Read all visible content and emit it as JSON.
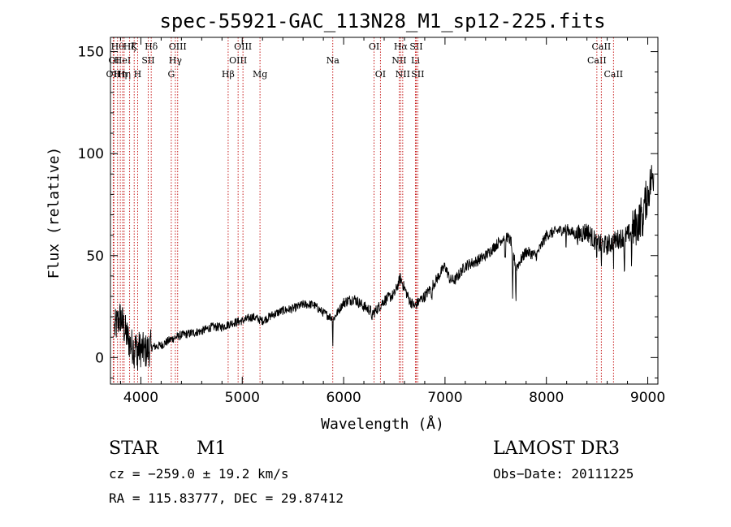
{
  "chart_data": {
    "type": "line",
    "title": "spec-55921-GAC_113N28_M1_sp12-225.fits",
    "xlabel": "Wavelength (Å)",
    "ylabel": "Flux (relative)",
    "xlim": [
      3700,
      9100
    ],
    "ylim": [
      -13,
      157
    ],
    "xticks": [
      4000,
      5000,
      6000,
      7000,
      8000,
      9000
    ],
    "yticks": [
      0,
      50,
      100,
      150
    ],
    "grid": false,
    "series": [
      {
        "name": "flux",
        "x": [
          3700,
          3750,
          3800,
          3850,
          3900,
          3950,
          4000,
          4050,
          4100,
          4200,
          4300,
          4400,
          4500,
          4600,
          4700,
          4800,
          4900,
          5000,
          5100,
          5200,
          5300,
          5400,
          5500,
          5600,
          5700,
          5800,
          5900,
          6000,
          6100,
          6200,
          6300,
          6400,
          6500,
          6560,
          6600,
          6650,
          6700,
          6750,
          6800,
          6900,
          7000,
          7050,
          7100,
          7200,
          7300,
          7400,
          7500,
          7600,
          7650,
          7700,
          7800,
          7900,
          8000,
          8100,
          8200,
          8300,
          8400,
          8500,
          8600,
          8700,
          8800,
          8900,
          8950,
          9000,
          9050
        ],
        "y": [
          10,
          15,
          20,
          12,
          6,
          5,
          4,
          3,
          5,
          6,
          9,
          11,
          12,
          13,
          15,
          15,
          17,
          18,
          20,
          18,
          21,
          23,
          24,
          26,
          26,
          22,
          19,
          27,
          29,
          25,
          22,
          28,
          31,
          39,
          34,
          28,
          25,
          28,
          30,
          37,
          45,
          38,
          38,
          45,
          47,
          50,
          55,
          60,
          57,
          44,
          52,
          50,
          60,
          62,
          63,
          60,
          62,
          56,
          55,
          58,
          60,
          65,
          72,
          80,
          90
        ]
      }
    ],
    "line_labels": [
      {
        "wl": 3727,
        "text": "OII",
        "row": 3
      },
      {
        "wl": 3734,
        "text": "OI",
        "row": 2
      },
      {
        "wl": 3770,
        "text": "Hθ",
        "row": 1
      },
      {
        "wl": 3797,
        "text": "Hη",
        "row": 3
      },
      {
        "wl": 3820,
        "text": "HeI",
        "row": 2
      },
      {
        "wl": 3835,
        "text": "Hη",
        "row": 3
      },
      {
        "wl": 3889,
        "text": "Hζ",
        "row": 1
      },
      {
        "wl": 3934,
        "text": "K",
        "row": 1
      },
      {
        "wl": 3968,
        "text": "H",
        "row": 3
      },
      {
        "wl": 4072,
        "text": "SII",
        "row": 2
      },
      {
        "wl": 4102,
        "text": "Hδ",
        "row": 1
      },
      {
        "wl": 4300,
        "text": "G",
        "row": 3
      },
      {
        "wl": 4340,
        "text": "Hγ",
        "row": 2
      },
      {
        "wl": 4363,
        "text": "OIII",
        "row": 1
      },
      {
        "wl": 4861,
        "text": "Hβ",
        "row": 3
      },
      {
        "wl": 4959,
        "text": "OIII",
        "row": 2
      },
      {
        "wl": 5007,
        "text": "OIII",
        "row": 1
      },
      {
        "wl": 5175,
        "text": "Mg",
        "row": 3
      },
      {
        "wl": 5893,
        "text": "Na",
        "row": 2
      },
      {
        "wl": 6300,
        "text": "OI",
        "row": 1
      },
      {
        "wl": 6363,
        "text": "OI",
        "row": 3
      },
      {
        "wl": 6548,
        "text": "NII",
        "row": 2
      },
      {
        "wl": 6563,
        "text": "Hα",
        "row": 1
      },
      {
        "wl": 6583,
        "text": "NII",
        "row": 3
      },
      {
        "wl": 6708,
        "text": "Li",
        "row": 2
      },
      {
        "wl": 6716,
        "text": "SII",
        "row": 1
      },
      {
        "wl": 6731,
        "text": "SII",
        "row": 3
      },
      {
        "wl": 8498,
        "text": "CaII",
        "row": 2
      },
      {
        "wl": 8542,
        "text": "CaII",
        "row": 1
      },
      {
        "wl": 8662,
        "text": "CaII",
        "row": 3
      }
    ]
  },
  "info": {
    "class": "STAR",
    "subclass": "M1",
    "survey": "LAMOST DR3",
    "cz": "cz = −259.0 ± 19.2 km/s",
    "obs_date": "Obs−Date: 20111225",
    "coords": "RA = 115.83777, DEC =  29.87412"
  }
}
